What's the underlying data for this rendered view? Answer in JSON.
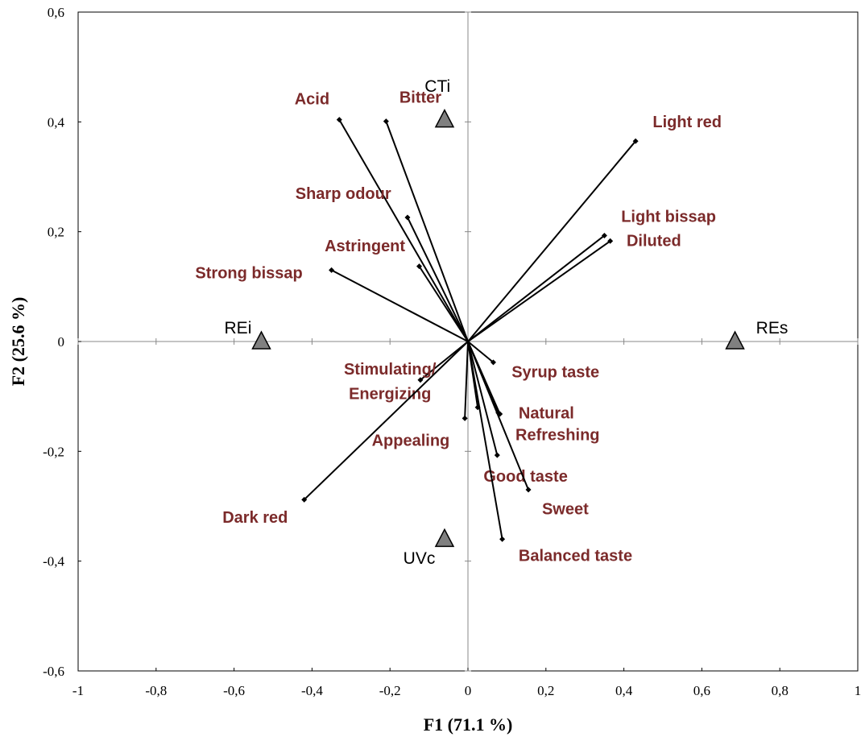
{
  "chart_data": {
    "type": "scatter",
    "subtype": "PCA biplot",
    "title": "",
    "xlabel": "F1 (71.1 %)",
    "ylabel": "F2 (25.6 %)",
    "xlim": [
      -1,
      1
    ],
    "ylim": [
      -0.6,
      0.6
    ],
    "x_ticks": [
      -1,
      -0.8,
      -0.6,
      -0.4,
      -0.2,
      0,
      0.2,
      0.4,
      0.6,
      0.8,
      1
    ],
    "x_tick_labels": [
      "-1",
      "-0,8",
      "-0,6",
      "-0,4",
      "-0,2",
      "0",
      "0,2",
      "0,4",
      "0,6",
      "0,8",
      "1"
    ],
    "y_ticks": [
      -0.6,
      -0.4,
      -0.2,
      0,
      0.2,
      0.4,
      0.6
    ],
    "y_tick_labels": [
      "-0,6",
      "-0,4",
      "-0,2",
      "0",
      "0,2",
      "0,4",
      "0,6"
    ],
    "grid": false,
    "attribute_color": "#7b2a2a",
    "product_color": "#808080",
    "attributes": [
      {
        "label": "Acid",
        "x": -0.33,
        "y": 0.404,
        "label_x": -0.4,
        "label_y": 0.432,
        "anchor": "middle"
      },
      {
        "label": "Bitter",
        "x": -0.21,
        "y": 0.401,
        "label_x": -0.122,
        "label_y": 0.435,
        "anchor": "middle"
      },
      {
        "label": "Light red",
        "x": 0.43,
        "y": 0.365,
        "label_x": 0.474,
        "label_y": 0.39,
        "anchor": "start"
      },
      {
        "label": "Sharp odour",
        "x": -0.155,
        "y": 0.226,
        "label_x": -0.197,
        "label_y": 0.26,
        "anchor": "end"
      },
      {
        "label": "Light bissap",
        "x": 0.35,
        "y": 0.193,
        "label_x": 0.393,
        "label_y": 0.218,
        "anchor": "start"
      },
      {
        "label": "Diluted",
        "x": 0.365,
        "y": 0.183,
        "label_x": 0.407,
        "label_y": 0.174,
        "anchor": "start"
      },
      {
        "label": "Astringent",
        "x": -0.125,
        "y": 0.137,
        "label_x": -0.161,
        "label_y": 0.164,
        "anchor": "end"
      },
      {
        "label": "Strong bissap",
        "x": -0.35,
        "y": 0.13,
        "label_x": -0.424,
        "label_y": 0.115,
        "anchor": "end"
      },
      {
        "label": "Syrup taste",
        "x": 0.065,
        "y": -0.038,
        "label_x": 0.112,
        "label_y": -0.065,
        "anchor": "start"
      },
      {
        "label": "Stimulating/",
        "x": -0.122,
        "y": -0.07,
        "label_x": -0.2,
        "label_y": -0.06,
        "anchor": "middle"
      },
      {
        "label": "Energizing",
        "x": null,
        "y": null,
        "label_x": -0.2,
        "label_y": -0.105,
        "anchor": "middle"
      },
      {
        "label": "Natural",
        "x": 0.082,
        "y": -0.132,
        "label_x": 0.13,
        "label_y": -0.14,
        "anchor": "start"
      },
      {
        "label": "Refreshing",
        "x": 0.078,
        "y": -0.13,
        "label_x": 0.122,
        "label_y": -0.18,
        "anchor": "start"
      },
      {
        "label": "Appealing",
        "x": -0.008,
        "y": -0.14,
        "label_x": -0.047,
        "label_y": -0.19,
        "anchor": "end"
      },
      {
        "label": "",
        "x": 0.025,
        "y": -0.12,
        "label_x": null,
        "label_y": null,
        "anchor": "start"
      },
      {
        "label": "Good taste",
        "x": 0.075,
        "y": -0.207,
        "label_x": 0.04,
        "label_y": -0.255,
        "anchor": "start"
      },
      {
        "label": "Sweet",
        "x": 0.155,
        "y": -0.27,
        "label_x": 0.19,
        "label_y": -0.315,
        "anchor": "start"
      },
      {
        "label": "Dark red",
        "x": -0.42,
        "y": -0.288,
        "label_x": -0.462,
        "label_y": -0.33,
        "anchor": "end"
      },
      {
        "label": "Balanced taste",
        "x": 0.088,
        "y": -0.36,
        "label_x": 0.13,
        "label_y": -0.4,
        "anchor": "start"
      }
    ],
    "products": [
      {
        "label": "CTi",
        "x": -0.06,
        "y": 0.404,
        "label_x": -0.078,
        "label_y": 0.455,
        "anchor": "middle"
      },
      {
        "label": "REi",
        "x": -0.53,
        "y": 0.0,
        "label_x": -0.59,
        "label_y": 0.015,
        "anchor": "middle"
      },
      {
        "label": "REs",
        "x": 0.685,
        "y": 0.0,
        "label_x": 0.78,
        "label_y": 0.015,
        "anchor": "middle"
      },
      {
        "label": "UVc",
        "x": -0.06,
        "y": -0.36,
        "label_x": -0.125,
        "label_y": -0.405,
        "anchor": "middle"
      }
    ]
  }
}
